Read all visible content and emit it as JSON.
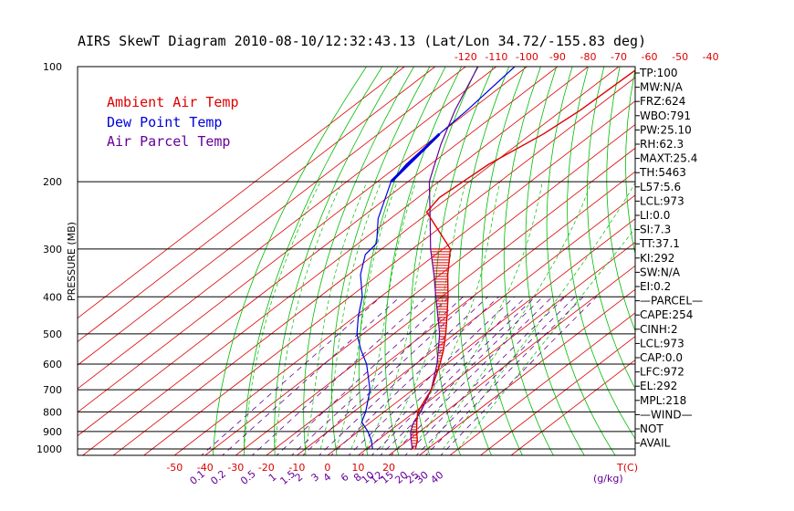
{
  "chart_data": {
    "type": "line",
    "title": "AIRS SkewT Diagram 2010-08-10/12:32:43.13 (Lat/Lon 34.72/-155.83 deg)",
    "ylabel": "PRESSURE (MB)",
    "x_unit_label": "T(C)",
    "mixing_ratio_unit_label": "(g/kg)",
    "y_scale": "log",
    "pressure_range_mb": [
      1000,
      100
    ],
    "pressure_ticks": [
      100,
      200,
      300,
      400,
      500,
      600,
      700,
      800,
      900,
      1000
    ],
    "bottom_temp_ticks": [
      "-50",
      "-40",
      "-30",
      "-20",
      "-10",
      "0",
      "10",
      "20"
    ],
    "top_temp_ticks": [
      "-120",
      "-110",
      "-100",
      "-90",
      "-80",
      "-70",
      "-60",
      "-50",
      "-40"
    ],
    "mixing_ratio_ticks": [
      "0.1",
      "0.2",
      "0.5",
      "1",
      "1.5",
      "2",
      "3",
      "4",
      "6",
      "8",
      "10",
      "12",
      "15",
      "20",
      "25",
      "30",
      "40"
    ],
    "legend": [
      {
        "label": "Ambient Air Temp",
        "color": "#dd0000"
      },
      {
        "label": "Dew Point Temp",
        "color": "#0000dd"
      },
      {
        "label": "Air Parcel Temp",
        "color": "#660099"
      }
    ],
    "series": [
      {
        "name": "Ambient Air Temp",
        "color": "#dd0000",
        "points": [
          [
            100,
            -63
          ],
          [
            130,
            -64
          ],
          [
            150,
            -66
          ],
          [
            180,
            -71
          ],
          [
            220,
            -73
          ],
          [
            240,
            -71
          ],
          [
            300,
            -47.5
          ],
          [
            350,
            -37.5
          ],
          [
            400,
            -28
          ],
          [
            450,
            -20
          ],
          [
            500,
            -13
          ],
          [
            550,
            -7
          ],
          [
            600,
            -2
          ],
          [
            700,
            6
          ],
          [
            800,
            11
          ],
          [
            850,
            15
          ],
          [
            900,
            19
          ],
          [
            950,
            23
          ],
          [
            1000,
            26
          ]
        ]
      },
      {
        "name": "Dew Point Temp",
        "color": "#0000dd",
        "points": [
          [
            100,
            -104
          ],
          [
            130,
            -101
          ],
          [
            150,
            -100
          ],
          [
            180,
            -98
          ],
          [
            200,
            -95.5
          ],
          [
            250,
            -84
          ],
          [
            290,
            -74
          ],
          [
            310,
            -73
          ],
          [
            350,
            -66
          ],
          [
            400,
            -56
          ],
          [
            450,
            -49
          ],
          [
            500,
            -42
          ],
          [
            550,
            -34
          ],
          [
            600,
            -26
          ],
          [
            700,
            -14
          ],
          [
            800,
            -6
          ],
          [
            850,
            -3
          ],
          [
            900,
            3
          ],
          [
            950,
            8
          ],
          [
            1000,
            12
          ]
        ]
      },
      {
        "name": "Air Parcel Temp",
        "color": "#660099",
        "points": [
          [
            100,
            -116
          ],
          [
            130,
            -105
          ],
          [
            160,
            -95
          ],
          [
            200,
            -83
          ],
          [
            250,
            -67
          ],
          [
            300,
            -54
          ],
          [
            350,
            -42
          ],
          [
            400,
            -32
          ],
          [
            450,
            -23
          ],
          [
            500,
            -15
          ],
          [
            600,
            -3
          ],
          [
            700,
            6
          ],
          [
            800,
            12
          ],
          [
            850,
            14
          ],
          [
            900,
            17
          ],
          [
            950,
            21
          ],
          [
            1000,
            25
          ]
        ]
      }
    ]
  },
  "indices": [
    "TP:100",
    "MW:N/A",
    "FRZ:624",
    "WBO:791",
    "PW:25.10",
    "RH:62.3",
    "MAXT:25.4",
    "TH:5463",
    "L57:5.6",
    "LCL:973",
    "LI:0.0",
    "SI:7.3",
    "TT:37.1",
    "KI:292",
    "SW:N/A",
    "EI:0.2",
    "—PARCEL—",
    "CAPE:254",
    "CINH:2",
    "LCL:973",
    "CAP:0.0",
    "LFC:972",
    "EL:292",
    "MPL:218",
    "—WIND—",
    "NOT",
    "AVAIL"
  ]
}
